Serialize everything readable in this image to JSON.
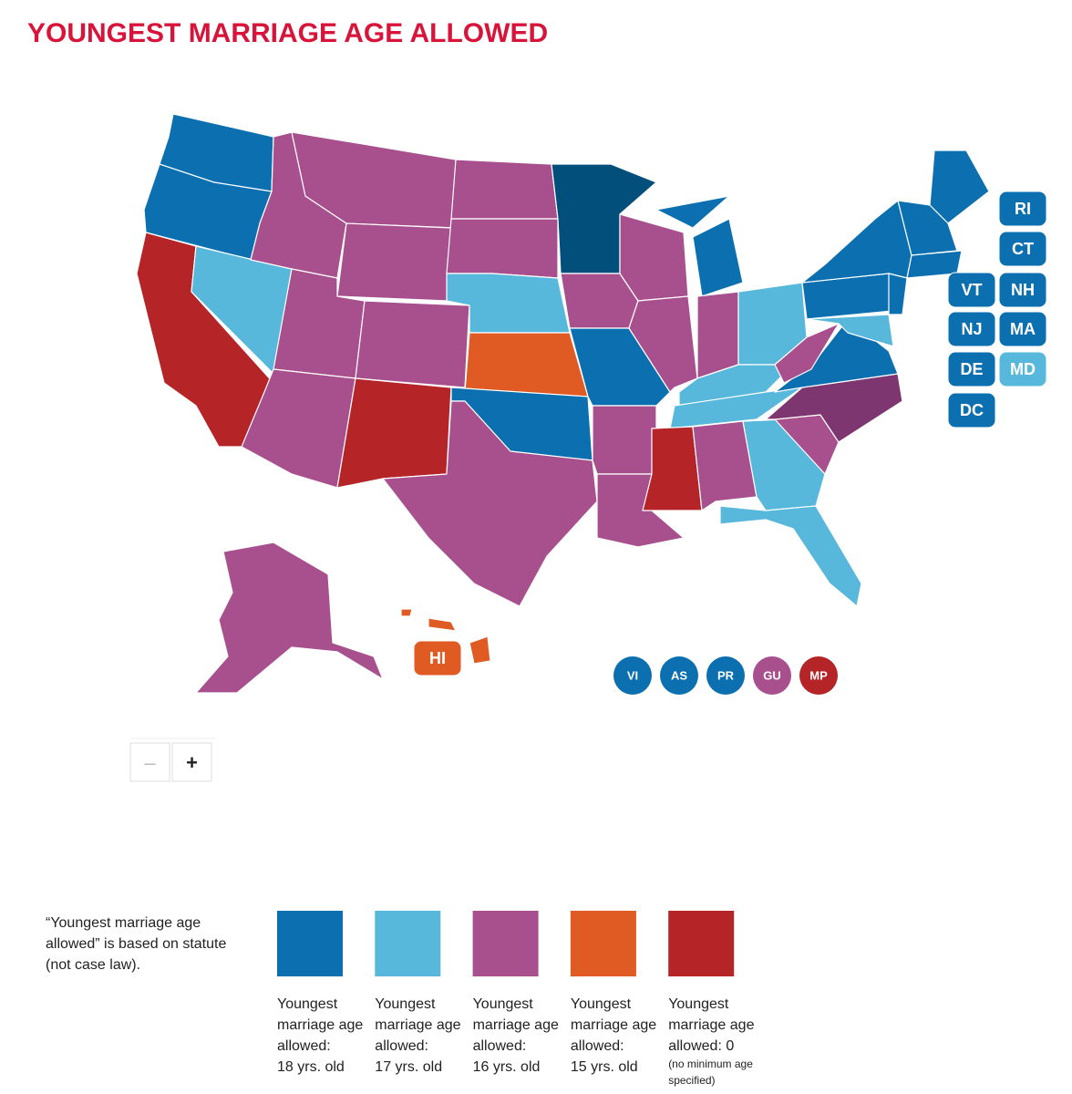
{
  "title": "YOUNGEST MARRIAGE AGE ALLOWED",
  "legend": [
    {
      "color": "#0b6fb0",
      "lines": [
        "Youngest",
        "marriage age",
        "allowed:",
        "18 yrs. old"
      ]
    },
    {
      "color": "#58b8db",
      "lines": [
        "Youngest",
        "marriage age",
        "allowed:",
        "17 yrs. old"
      ]
    },
    {
      "color": "#a8508e",
      "lines": [
        "Youngest",
        "marriage age",
        "allowed:",
        "16 yrs. old"
      ]
    },
    {
      "color": "#e05a24",
      "lines": [
        "Youngest",
        "marriage age",
        "allowed:",
        "15 yrs. old"
      ]
    },
    {
      "color": "#b52426",
      "lines": [
        "Youngest",
        "marriage age",
        "allowed: 0"
      ],
      "footnote": [
        "(no minimum age",
        "specified)"
      ]
    }
  ],
  "badges": [
    {
      "label": "RI",
      "category": 0
    },
    {
      "label": "CT",
      "category": 0
    },
    {
      "label": "VT",
      "category": 0
    },
    {
      "label": "NH",
      "category": 0
    },
    {
      "label": "NJ",
      "category": 0
    },
    {
      "label": "MA",
      "category": 0
    },
    {
      "label": "DE",
      "category": 0
    },
    {
      "label": "MD",
      "category": 1
    },
    {
      "label": "DC",
      "category": 0
    },
    {
      "label": "HI",
      "category": 3
    }
  ],
  "territories": [
    {
      "label": "VI",
      "category": 0
    },
    {
      "label": "AS",
      "category": 0
    },
    {
      "label": "PR",
      "category": 0
    },
    {
      "label": "GU",
      "category": 2
    },
    {
      "label": "MP",
      "category": 4
    }
  ],
  "zoom": {
    "out": "–",
    "in": "+"
  },
  "note": [
    "“Youngest marriage age",
    "allowed” is based on statute",
    "(not case law)."
  ]
}
